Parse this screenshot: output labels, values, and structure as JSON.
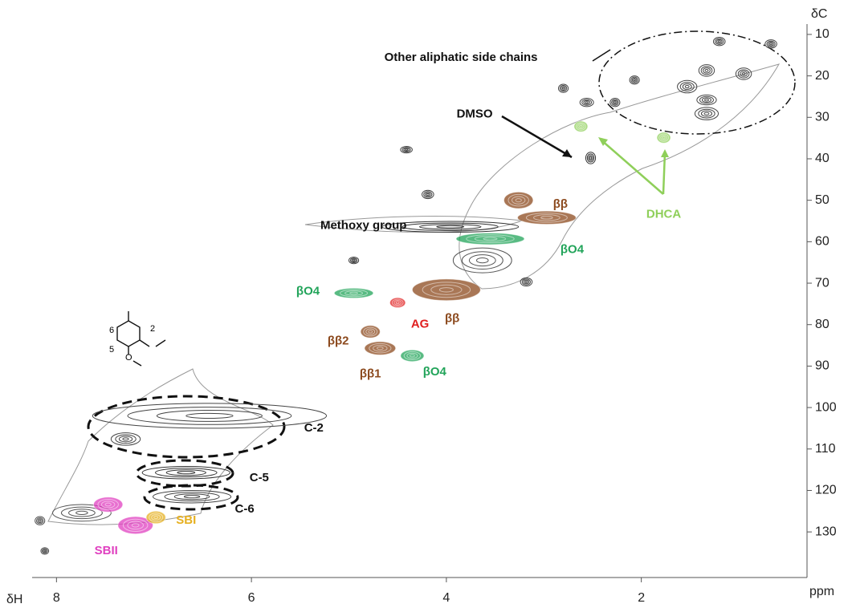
{
  "chart_data": {
    "type": "contour",
    "x_label": "δH",
    "y_label": "δC",
    "unit_label": "ppm",
    "xlim": [
      8.25,
      0.3
    ],
    "ylim": [
      7.5,
      141
    ],
    "xticks": [
      8,
      6,
      4,
      2
    ],
    "yticks": [
      10,
      20,
      30,
      40,
      50,
      60,
      70,
      80,
      90,
      100,
      110,
      120,
      130
    ],
    "structure_labels": [
      "6",
      "2",
      "5",
      "O"
    ],
    "peaks": [
      {
        "x": 3.96,
        "y": 56.4,
        "rx": 0.7,
        "ry": 1.3,
        "color": "#333333"
      },
      {
        "x": 3.63,
        "y": 64.5,
        "rx": 0.3,
        "ry": 3,
        "color": "#555555"
      },
      {
        "x": 6.43,
        "y": 102,
        "rx": 1.2,
        "ry": 3,
        "color": "#444444"
      },
      {
        "x": 7.29,
        "y": 107.6,
        "rx": 0.15,
        "ry": 1.5,
        "color": "#444444"
      },
      {
        "x": 6.67,
        "y": 115.7,
        "rx": 0.45,
        "ry": 1.5,
        "color": "#333333"
      },
      {
        "x": 6.61,
        "y": 121.5,
        "rx": 0.4,
        "ry": 1.5,
        "color": "#444444"
      },
      {
        "x": 7.74,
        "y": 125.4,
        "rx": 0.3,
        "ry": 2,
        "color": "#555555"
      },
      {
        "x": 8.17,
        "y": 127.3,
        "rx": 0.05,
        "ry": 1,
        "color": "#555555"
      },
      {
        "x": 8.12,
        "y": 134.6,
        "rx": 0.04,
        "ry": 0.8,
        "color": "#555555"
      },
      {
        "x": 2.52,
        "y": 39.8,
        "rx": 0.05,
        "ry": 1.4,
        "color": "#333333"
      },
      {
        "x": 0.67,
        "y": 12.3,
        "rx": 0.06,
        "ry": 1,
        "color": "#444444"
      },
      {
        "x": 1.2,
        "y": 11.7,
        "rx": 0.06,
        "ry": 1,
        "color": "#444444"
      },
      {
        "x": 1.33,
        "y": 18.7,
        "rx": 0.08,
        "ry": 1.4,
        "color": "#444444"
      },
      {
        "x": 0.95,
        "y": 19.5,
        "rx": 0.08,
        "ry": 1.4,
        "color": "#444444"
      },
      {
        "x": 1.53,
        "y": 22.6,
        "rx": 0.1,
        "ry": 1.5,
        "color": "#444444"
      },
      {
        "x": 1.33,
        "y": 25.8,
        "rx": 0.1,
        "ry": 1.2,
        "color": "#444444"
      },
      {
        "x": 1.33,
        "y": 29.1,
        "rx": 0.12,
        "ry": 1.5,
        "color": "#444444"
      },
      {
        "x": 2.07,
        "y": 21,
        "rx": 0.05,
        "ry": 1,
        "color": "#444444"
      },
      {
        "x": 2.27,
        "y": 26.4,
        "rx": 0.05,
        "ry": 1,
        "color": "#444444"
      },
      {
        "x": 2.56,
        "y": 26.4,
        "rx": 0.07,
        "ry": 1,
        "color": "#444444"
      },
      {
        "x": 2.8,
        "y": 23,
        "rx": 0.05,
        "ry": 1,
        "color": "#444444"
      },
      {
        "x": 4.19,
        "y": 48.6,
        "rx": 0.06,
        "ry": 1,
        "color": "#444444"
      },
      {
        "x": 4.41,
        "y": 37.8,
        "rx": 0.06,
        "ry": 0.8,
        "color": "#444444"
      },
      {
        "x": 4.95,
        "y": 64.5,
        "rx": 0.05,
        "ry": 0.8,
        "color": "#444444"
      },
      {
        "x": 3.18,
        "y": 69.7,
        "rx": 0.06,
        "ry": 1,
        "color": "#444444"
      },
      {
        "x": 3.26,
        "y": 50,
        "rx": 0.15,
        "ry": 2,
        "color": "#8c4a1e"
      },
      {
        "x": 2.97,
        "y": 54.2,
        "rx": 0.3,
        "ry": 1.6,
        "color": "#8c4a1e"
      },
      {
        "x": 3.55,
        "y": 59.3,
        "rx": 0.35,
        "ry": 1.4,
        "color": "#22a45a"
      },
      {
        "x": 4.95,
        "y": 72.4,
        "rx": 0.2,
        "ry": 1.2,
        "color": "#22a45a"
      },
      {
        "x": 4.0,
        "y": 71.6,
        "rx": 0.35,
        "ry": 2.6,
        "color": "#8c4a1e"
      },
      {
        "x": 4.5,
        "y": 74.7,
        "rx": 0.08,
        "ry": 1.2,
        "color": "#e02020"
      },
      {
        "x": 4.78,
        "y": 81.7,
        "rx": 0.1,
        "ry": 1.5,
        "color": "#8c4a1e"
      },
      {
        "x": 4.68,
        "y": 85.7,
        "rx": 0.16,
        "ry": 1.6,
        "color": "#8c4a1e"
      },
      {
        "x": 4.35,
        "y": 87.5,
        "rx": 0.12,
        "ry": 1.4,
        "color": "#22a45a"
      },
      {
        "x": 2.62,
        "y": 32.2,
        "rx": 0.07,
        "ry": 1.3,
        "color": "#8fcf5a"
      },
      {
        "x": 1.77,
        "y": 34.9,
        "rx": 0.07,
        "ry": 1.3,
        "color": "#8fcf5a"
      },
      {
        "x": 7.47,
        "y": 123.4,
        "rx": 0.15,
        "ry": 1.8,
        "color": "#e040c0"
      },
      {
        "x": 7.19,
        "y": 128.4,
        "rx": 0.18,
        "ry": 2.1,
        "color": "#e040c0"
      },
      {
        "x": 6.98,
        "y": 126.5,
        "rx": 0.1,
        "ry": 1.5,
        "color": "#e6b020"
      }
    ],
    "annotations": [
      {
        "text": "Other aliphatic side chains",
        "x": 3.85,
        "y": 15.6,
        "color": "#111111"
      },
      {
        "text": "DMSO",
        "x": 3.71,
        "y": 29.3,
        "color": "#111111"
      },
      {
        "text": "DHCA",
        "x": 1.77,
        "y": 53.5,
        "color": "#8fcf5a"
      },
      {
        "text": "ββ",
        "x": 2.83,
        "y": 51,
        "color": "#8c4a1e"
      },
      {
        "text": "Methoxy group",
        "x": 4.85,
        "y": 56.2,
        "color": "#111111"
      },
      {
        "text": "βO4",
        "x": 2.71,
        "y": 62,
        "color": "#22a45a"
      },
      {
        "text": "βO4",
        "x": 5.42,
        "y": 72,
        "color": "#22a45a"
      },
      {
        "text": "AG",
        "x": 4.27,
        "y": 80,
        "color": "#e02020"
      },
      {
        "text": "ββ",
        "x": 3.94,
        "y": 78.6,
        "color": "#8c4a1e"
      },
      {
        "text": "ββ2",
        "x": 5.11,
        "y": 84,
        "color": "#8c4a1e"
      },
      {
        "text": "ββ1",
        "x": 4.78,
        "y": 92,
        "color": "#8c4a1e"
      },
      {
        "text": "βO4",
        "x": 4.12,
        "y": 91.5,
        "color": "#22a45a"
      },
      {
        "text": "C-2",
        "x": 5.36,
        "y": 105,
        "color": "#111111"
      },
      {
        "text": "C-5",
        "x": 5.92,
        "y": 117,
        "color": "#111111"
      },
      {
        "text": "C-6",
        "x": 6.07,
        "y": 124.6,
        "color": "#111111"
      },
      {
        "text": "SBI",
        "x": 6.67,
        "y": 127.3,
        "color": "#e6b020"
      },
      {
        "text": "SBII",
        "x": 7.49,
        "y": 134.6,
        "color": "#e040c0"
      }
    ]
  }
}
